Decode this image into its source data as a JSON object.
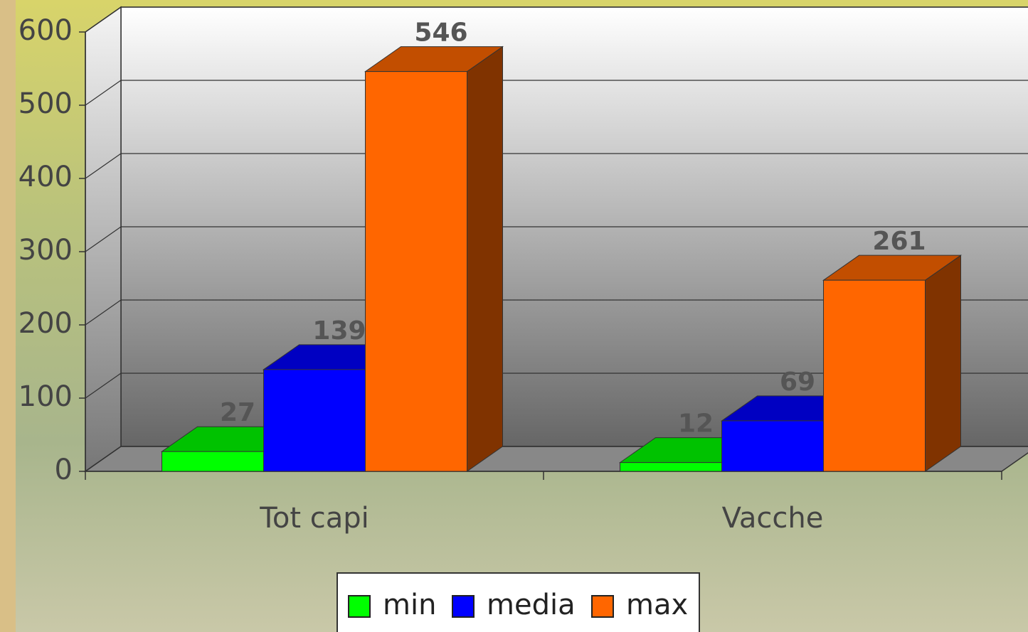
{
  "chart_data": {
    "type": "bar",
    "categories": [
      "Tot capi",
      "Vacche"
    ],
    "series": [
      {
        "name": "min",
        "color": "#00ff00",
        "values": [
          27,
          12
        ]
      },
      {
        "name": "media",
        "color": "#0000ff",
        "values": [
          139,
          69
        ]
      },
      {
        "name": "max",
        "color": "#ff6600",
        "values": [
          546,
          261
        ]
      }
    ],
    "ylim": [
      0,
      600
    ],
    "yticks": [
      0,
      100,
      200,
      300,
      400,
      500,
      600
    ],
    "grid": true,
    "legend": "bottom"
  }
}
